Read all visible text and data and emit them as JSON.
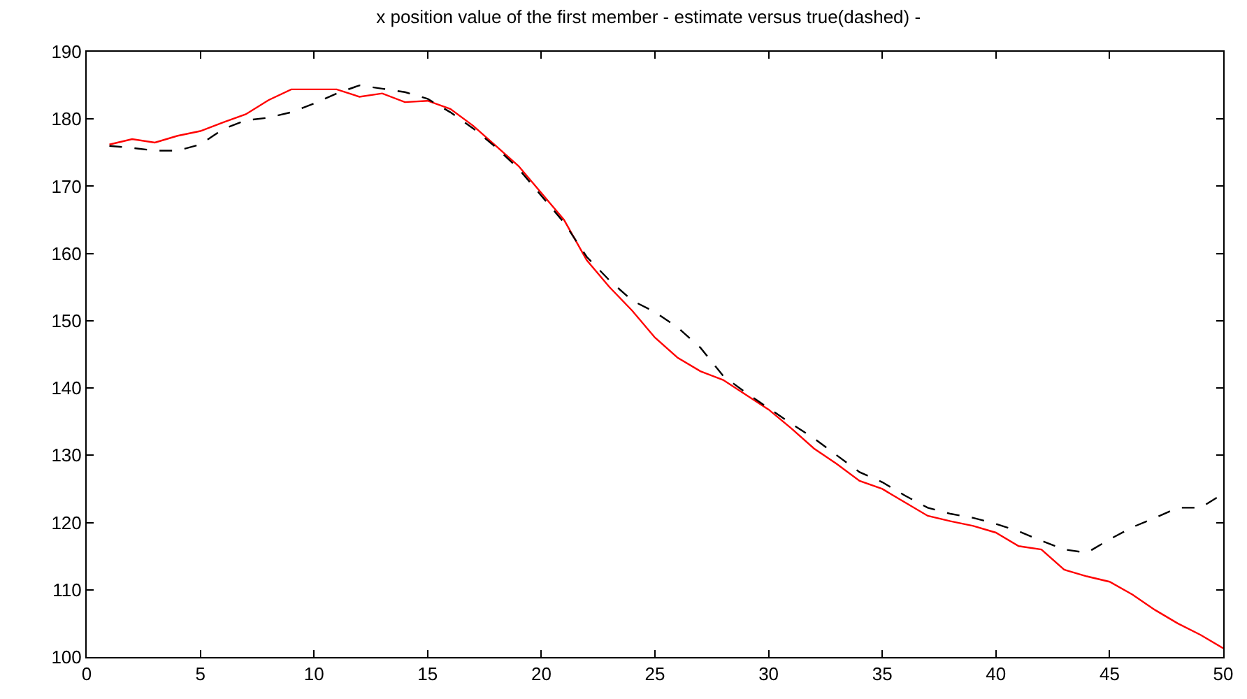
{
  "chart_data": {
    "type": "line",
    "title": "x position value of the first member - estimate versus true(dashed) -",
    "x": [
      1,
      2,
      3,
      4,
      5,
      6,
      7,
      8,
      9,
      10,
      11,
      12,
      13,
      14,
      15,
      16,
      17,
      18,
      19,
      20,
      21,
      22,
      23,
      24,
      25,
      26,
      27,
      28,
      29,
      30,
      31,
      32,
      33,
      34,
      35,
      36,
      37,
      38,
      39,
      40,
      41,
      42,
      43,
      44,
      45,
      46,
      47,
      48,
      49,
      50
    ],
    "series": [
      {
        "color": "#ff0000",
        "line_style": "solid",
        "values": [
          176.2,
          177,
          176.5,
          177.5,
          178.2,
          179.5,
          180.7,
          182.8,
          184.4,
          184.4,
          184.4,
          183.3,
          183.8,
          182.5,
          182.7,
          181.5,
          179,
          176,
          173,
          169,
          165,
          159,
          155,
          151.5,
          147.5,
          144.5,
          142.5,
          141.2,
          139,
          136.8,
          134,
          131,
          128.7,
          126.2,
          125,
          123,
          121,
          120.2,
          119.5,
          118.5,
          116.5,
          116,
          113,
          112,
          111.2,
          109.3,
          107,
          105,
          103.3,
          101.3
        ]
      },
      {
        "color": "#000000",
        "line_style": "dashed",
        "values": [
          176,
          175.7,
          175.3,
          175.3,
          176.2,
          178.5,
          179.8,
          180.2,
          181,
          182.3,
          183.8,
          185,
          184.5,
          184,
          183,
          181,
          178.6,
          175.8,
          172.6,
          168.6,
          164.6,
          159.5,
          156,
          153,
          151.3,
          149,
          146,
          141.8,
          139.3,
          137,
          134.7,
          132.5,
          130,
          127.5,
          126,
          124,
          122.2,
          121.3,
          120.7,
          119.8,
          118.7,
          117.3,
          116,
          115.5,
          117.5,
          119.3,
          120.7,
          122.2,
          122.2,
          124.3
        ]
      }
    ],
    "xlim": [
      0,
      50
    ],
    "xticks": [
      0,
      5,
      10,
      15,
      20,
      25,
      30,
      35,
      40,
      45,
      50
    ],
    "ylim": [
      100,
      190
    ],
    "yticks": [
      100,
      110,
      120,
      130,
      140,
      150,
      160,
      170,
      180,
      190
    ],
    "grid": false,
    "marker": "none"
  }
}
